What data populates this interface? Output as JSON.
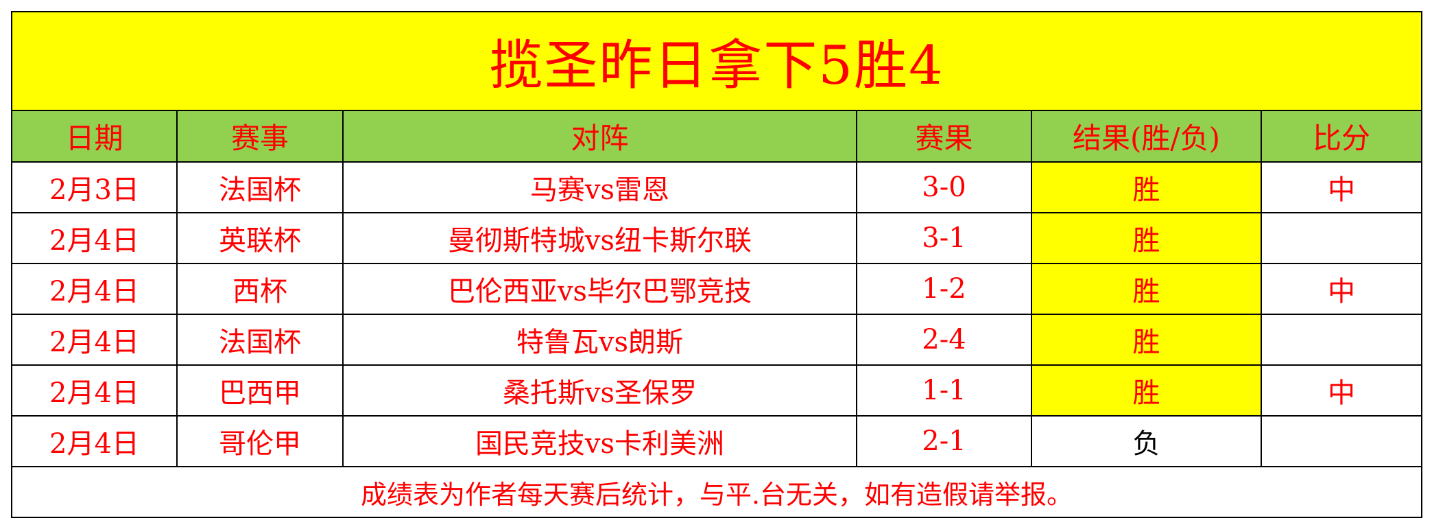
{
  "title": "揽圣昨日拿下5胜4",
  "headers": [
    "日期",
    "赛事",
    "对阵",
    "赛果",
    "结果(胜/负)",
    "比分"
  ],
  "rows": [
    {
      "date": "2月3日",
      "league": "法国杯",
      "match": "马赛vs雷恩",
      "score": "3-0",
      "result": "胜",
      "mark": "中"
    },
    {
      "date": "2月4日",
      "league": "英联杯",
      "match": "曼彻斯特城vs纽卡斯尔联",
      "score": "3-1",
      "result": "胜",
      "mark": ""
    },
    {
      "date": "2月4日",
      "league": "西杯",
      "match": "巴伦西亚vs毕尔巴鄂竞技",
      "score": "1-2",
      "result": "胜",
      "mark": "中"
    },
    {
      "date": "2月4日",
      "league": "法国杯",
      "match": "特鲁瓦vs朗斯",
      "score": "2-4",
      "result": "胜",
      "mark": ""
    },
    {
      "date": "2月4日",
      "league": "巴西甲",
      "match": "桑托斯vs圣保罗",
      "score": "1-1",
      "result": "胜",
      "mark": "中"
    },
    {
      "date": "2月4日",
      "league": "哥伦甲",
      "match": "国民竞技vs卡利美洲",
      "score": "2-1",
      "result": "负",
      "mark": ""
    }
  ],
  "footer": "成绩表为作者每天赛后统计，与平.台无关，如有造假请举报。",
  "colors": {
    "title_bg": "#ffff00",
    "header_bg": "#92d050",
    "text": "#ff0000",
    "win_bg": "#ffff00",
    "lose_text": "#000000"
  }
}
